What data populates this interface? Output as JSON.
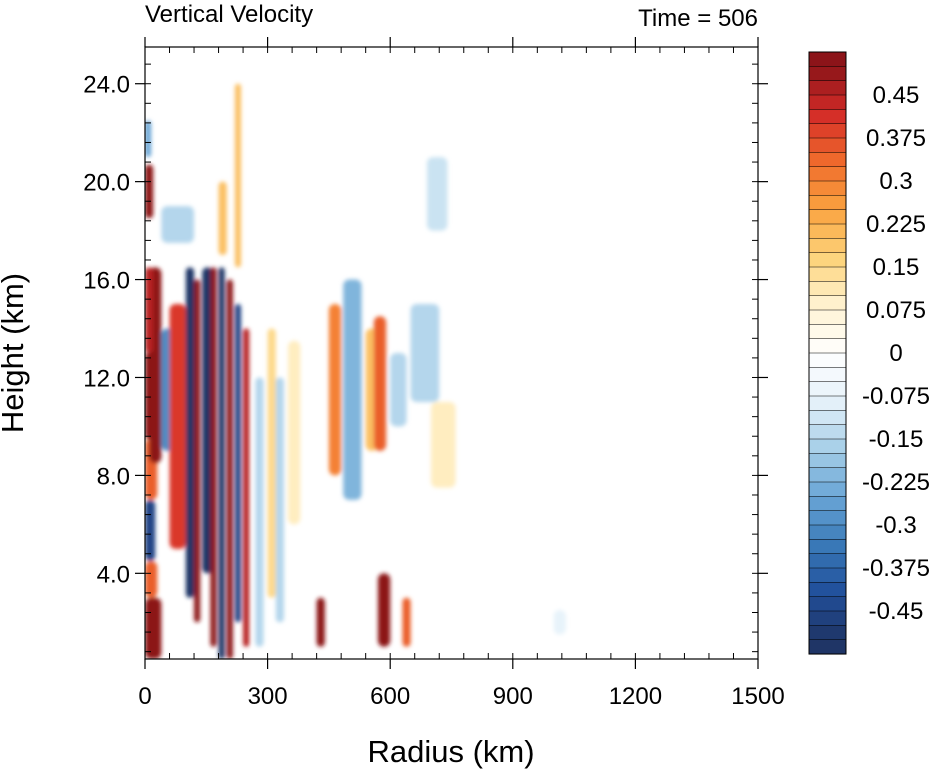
{
  "chart_data": {
    "type": "heatmap",
    "title_left": "Vertical Velocity",
    "title_right": "Time = 506",
    "xlabel": "Radius (km)",
    "ylabel": "Height (km)",
    "xlim": [
      0,
      1500
    ],
    "ylim": [
      0.5,
      25.5
    ],
    "xticks": [
      0,
      300,
      600,
      900,
      1200,
      1500
    ],
    "xtick_labels": [
      "0",
      "300",
      "600",
      "900",
      "1200",
      "1500"
    ],
    "yticks": [
      4,
      8,
      12,
      16,
      20,
      24
    ],
    "ytick_labels": [
      "4.0",
      "8.0",
      "12.0",
      "16.0",
      "20.0",
      "24.0"
    ],
    "colorbar": {
      "min": -0.5,
      "max": 0.5,
      "interval": 0.025,
      "labels": [
        {
          "value": 0.45,
          "text": "0.45"
        },
        {
          "value": 0.375,
          "text": "0.375"
        },
        {
          "value": 0.3,
          "text": "0.3"
        },
        {
          "value": 0.225,
          "text": "0.225"
        },
        {
          "value": 0.15,
          "text": "0.15"
        },
        {
          "value": 0.075,
          "text": "0.075"
        },
        {
          "value": 0,
          "text": "0"
        },
        {
          "value": -0.075,
          "text": "-0.075"
        },
        {
          "value": -0.15,
          "text": "-0.15"
        },
        {
          "value": -0.225,
          "text": "-0.225"
        },
        {
          "value": -0.3,
          "text": "-0.3"
        },
        {
          "value": -0.375,
          "text": "-0.375"
        },
        {
          "value": -0.45,
          "text": "-0.45"
        }
      ],
      "colormap": [
        "#1f3566",
        "#21509c",
        "#3a7ab8",
        "#6aa6d6",
        "#a7cfe8",
        "#e6f2fa",
        "#ffffff",
        "#fff3d1",
        "#fdd37a",
        "#f9a340",
        "#f06b2c",
        "#d42c28",
        "#8c1419"
      ]
    },
    "field_features": [
      {
        "r": [
          0,
          40
        ],
        "z": [
          0.5,
          3.0
        ],
        "w": 0.5
      },
      {
        "r": [
          0,
          30
        ],
        "z": [
          3.0,
          4.5
        ],
        "w": 0.35
      },
      {
        "r": [
          0,
          25
        ],
        "z": [
          4.5,
          7.0
        ],
        "w": -0.45
      },
      {
        "r": [
          0,
          30
        ],
        "z": [
          7.0,
          9.5
        ],
        "w": 0.35
      },
      {
        "r": [
          10,
          40
        ],
        "z": [
          8.5,
          16.5
        ],
        "w": 0.5
      },
      {
        "r": [
          0,
          15
        ],
        "z": [
          9.5,
          13.0
        ],
        "w": 0.5
      },
      {
        "r": [
          0,
          20
        ],
        "z": [
          13.0,
          16.5
        ],
        "w": 0.45
      },
      {
        "r": [
          40,
          80
        ],
        "z": [
          9.0,
          14.0
        ],
        "w": -0.3
      },
      {
        "r": [
          60,
          100
        ],
        "z": [
          5.0,
          15.0
        ],
        "w": 0.4
      },
      {
        "r": [
          100,
          120
        ],
        "z": [
          3.0,
          16.5
        ],
        "w": -0.5
      },
      {
        "r": [
          120,
          135
        ],
        "z": [
          2.0,
          16.0
        ],
        "w": 0.5
      },
      {
        "r": [
          140,
          165
        ],
        "z": [
          4.0,
          16.5
        ],
        "w": -0.5
      },
      {
        "r": [
          160,
          175
        ],
        "z": [
          1.0,
          16.5
        ],
        "w": 0.5
      },
      {
        "r": [
          180,
          195
        ],
        "z": [
          0.5,
          16.5
        ],
        "w": -0.5
      },
      {
        "r": [
          200,
          215
        ],
        "z": [
          0.5,
          16.0
        ],
        "w": 0.5
      },
      {
        "r": [
          220,
          235
        ],
        "z": [
          2.0,
          15.0
        ],
        "w": -0.45
      },
      {
        "r": [
          240,
          255
        ],
        "z": [
          1.0,
          14.0
        ],
        "w": 0.45
      },
      {
        "r": [
          0,
          20
        ],
        "z": [
          18.5,
          20.7
        ],
        "w": 0.5
      },
      {
        "r": [
          0,
          15
        ],
        "z": [
          21.0,
          22.5
        ],
        "w": -0.25
      },
      {
        "r": [
          40,
          120
        ],
        "z": [
          17.5,
          19.0
        ],
        "w": -0.15
      },
      {
        "r": [
          180,
          200
        ],
        "z": [
          17.0,
          20.0
        ],
        "w": 0.2
      },
      {
        "r": [
          220,
          235
        ],
        "z": [
          16.5,
          24.0
        ],
        "w": 0.2
      },
      {
        "r": [
          270,
          290
        ],
        "z": [
          1.0,
          12.0
        ],
        "w": -0.15
      },
      {
        "r": [
          300,
          320
        ],
        "z": [
          3.0,
          14.0
        ],
        "w": 0.15
      },
      {
        "r": [
          320,
          340
        ],
        "z": [
          2.0,
          12.0
        ],
        "w": -0.15
      },
      {
        "r": [
          350,
          380
        ],
        "z": [
          6.0,
          13.5
        ],
        "w": 0.1
      },
      {
        "r": [
          420,
          440
        ],
        "z": [
          1.0,
          3.0
        ],
        "w": 0.5
      },
      {
        "r": [
          450,
          480
        ],
        "z": [
          8.0,
          15.0
        ],
        "w": 0.3
      },
      {
        "r": [
          485,
          530
        ],
        "z": [
          7.0,
          16.0
        ],
        "w": -0.22
      },
      {
        "r": [
          540,
          570
        ],
        "z": [
          9.0,
          14.0
        ],
        "w": 0.2
      },
      {
        "r": [
          560,
          590
        ],
        "z": [
          9.0,
          14.5
        ],
        "w": 0.35
      },
      {
        "r": [
          570,
          600
        ],
        "z": [
          1.0,
          4.0
        ],
        "w": 0.5
      },
      {
        "r": [
          600,
          640
        ],
        "z": [
          10.0,
          13.0
        ],
        "w": -0.15
      },
      {
        "r": [
          630,
          650
        ],
        "z": [
          1.0,
          3.0
        ],
        "w": 0.35
      },
      {
        "r": [
          650,
          720
        ],
        "z": [
          11.0,
          15.0
        ],
        "w": -0.15
      },
      {
        "r": [
          690,
          740
        ],
        "z": [
          18.0,
          21.0
        ],
        "w": -0.12
      },
      {
        "r": [
          700,
          760
        ],
        "z": [
          7.5,
          11.0
        ],
        "w": 0.1
      },
      {
        "r": [
          1000,
          1030
        ],
        "z": [
          1.5,
          2.5
        ],
        "w": -0.08
      }
    ]
  }
}
